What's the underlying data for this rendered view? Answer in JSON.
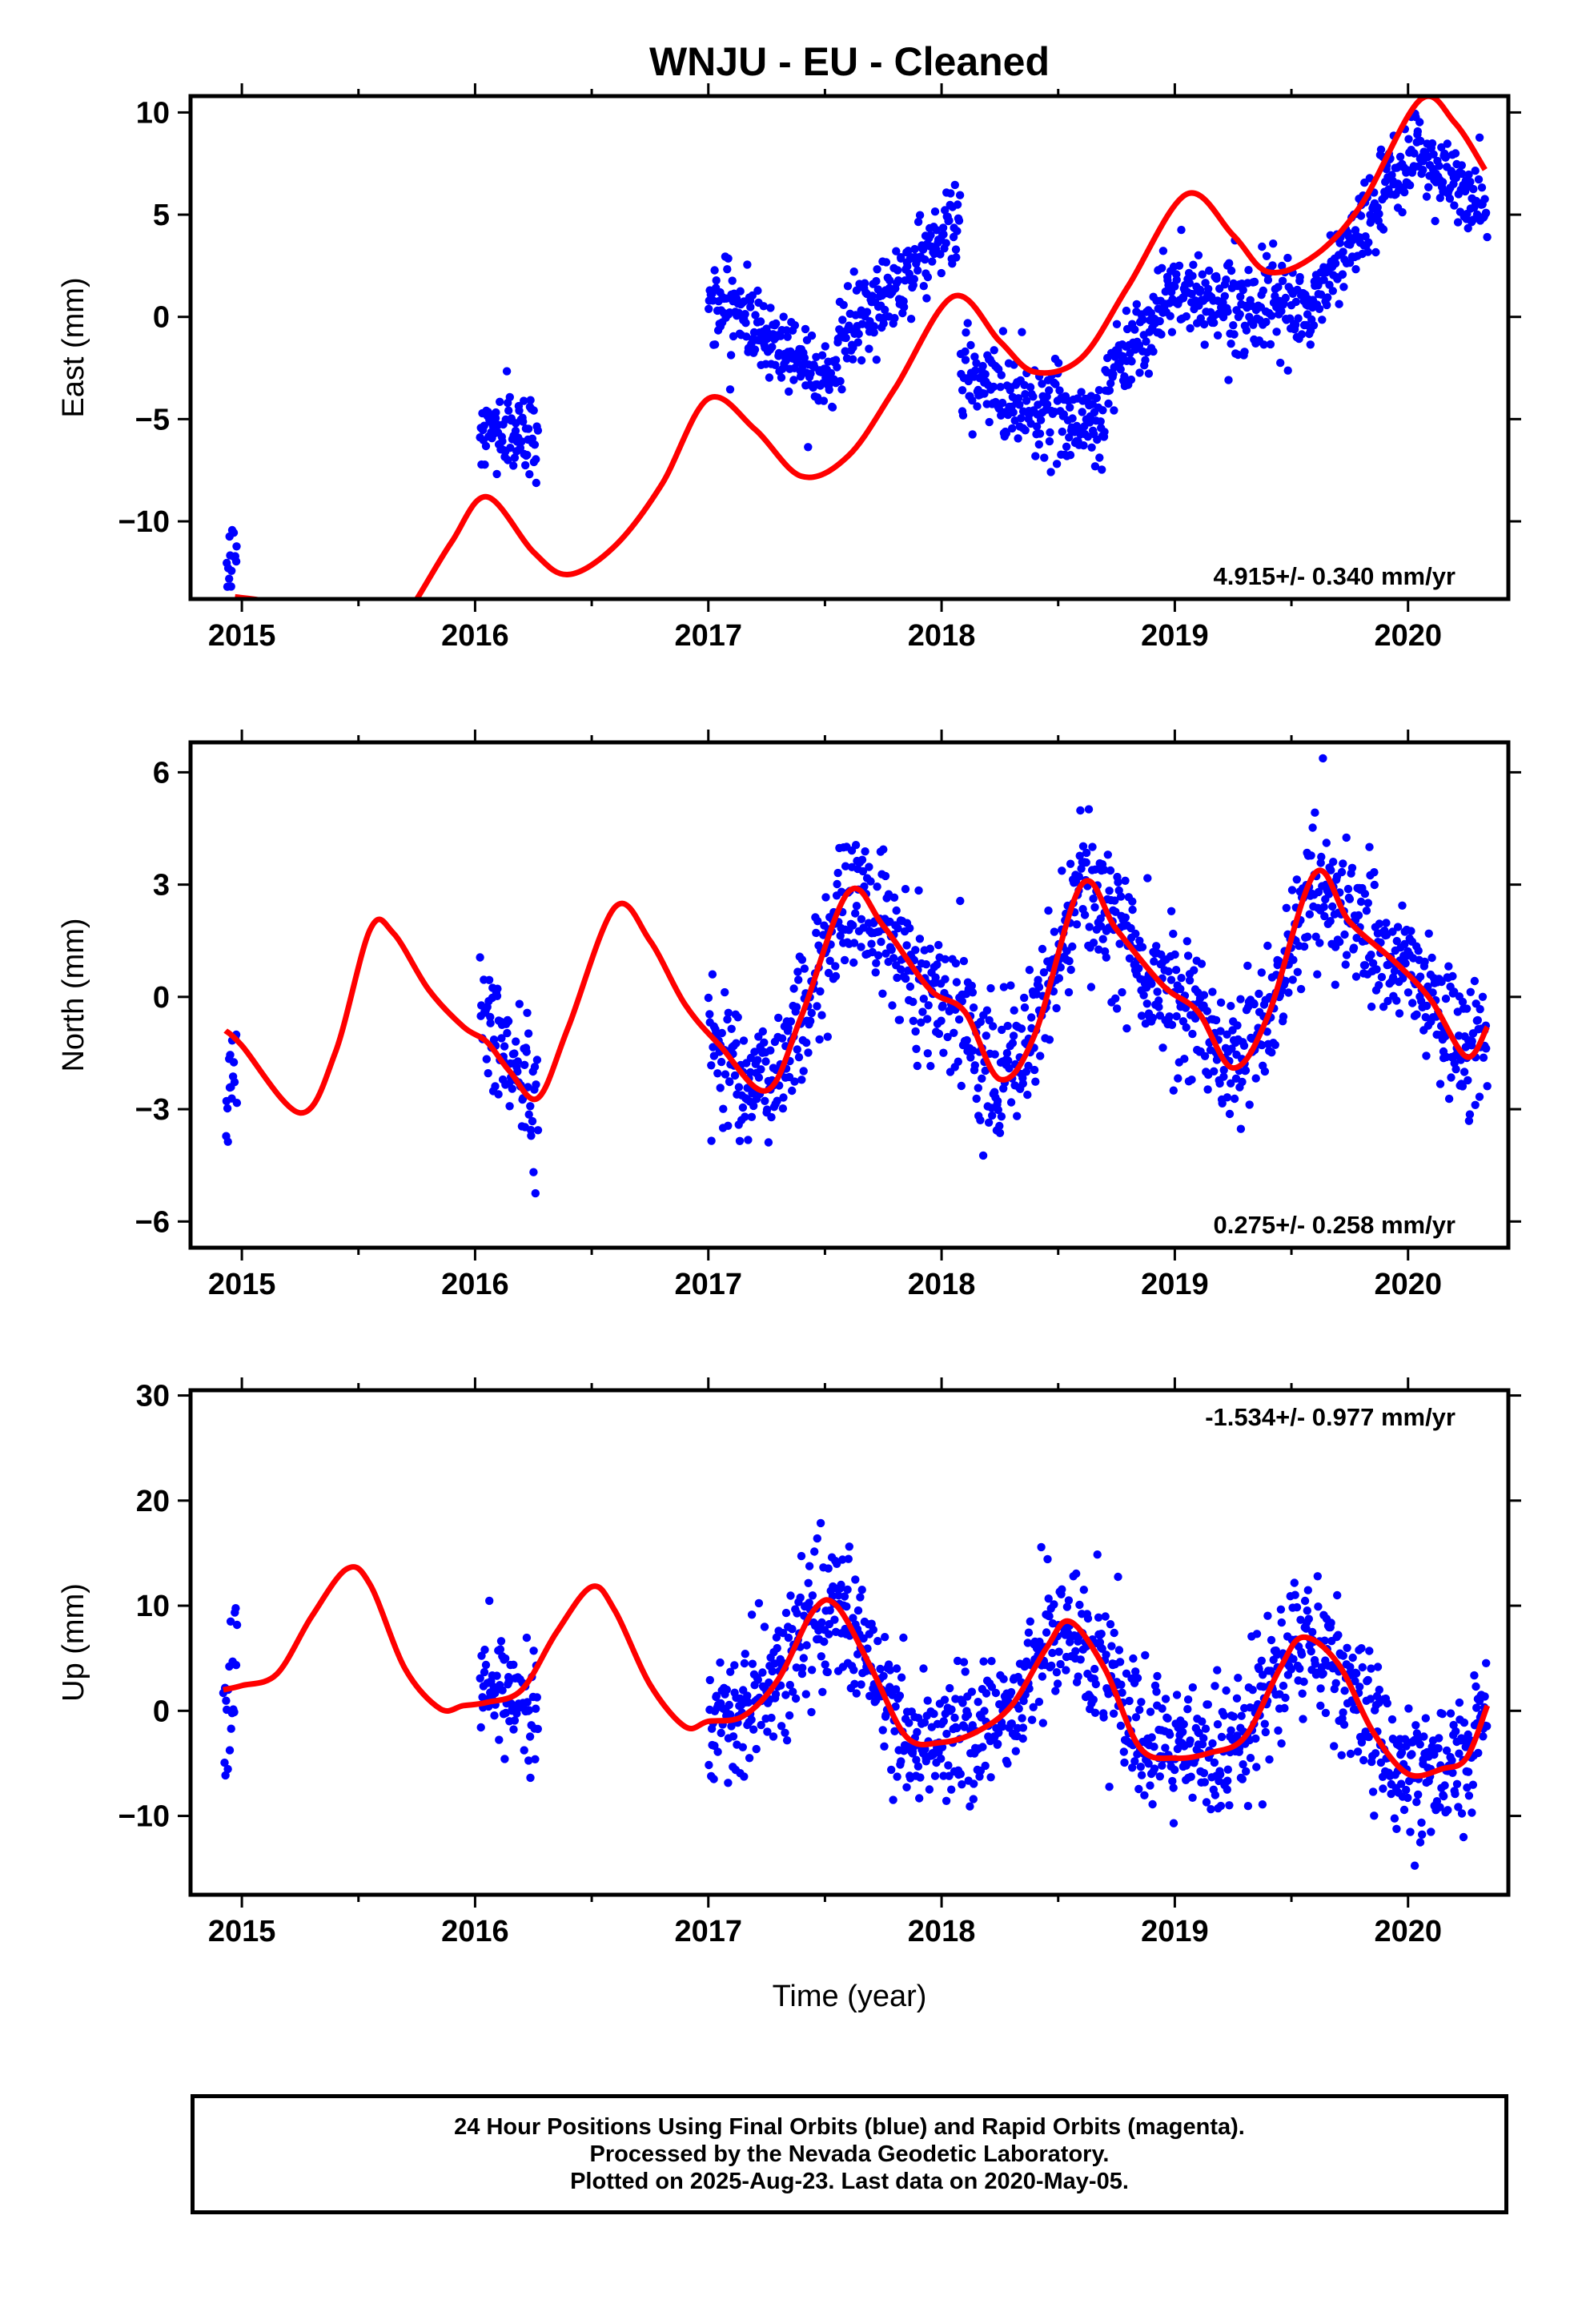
{
  "title": "WNJU  - EU - Cleaned",
  "xlabel": "Time (year)",
  "colors": {
    "final_orbits": "#0000ff",
    "model": "#ff0000",
    "frame": "#000000"
  },
  "caption": [
    "24 Hour Positions Using Final Orbits (blue) and Rapid Orbits (magenta).",
    "Processed by the Nevada Geodetic Laboratory.",
    "Plotted on 2025-Aug-23. Last data on 2020-May-05."
  ],
  "chart_data": [
    {
      "type": "scatter",
      "component": "east",
      "ylabel": "East (mm)",
      "rate_label": "4.915+/- 0.340 mm/yr",
      "xlim": [
        2014.78,
        2020.43
      ],
      "ylim": [
        -13.8,
        10.8
      ],
      "xticks": [
        2015,
        2016,
        2017,
        2018,
        2019,
        2020
      ],
      "yticks": [
        -10,
        -5,
        0,
        5,
        10
      ],
      "tick_labels_y": [
        "−10",
        "−5",
        "0",
        "5",
        "10"
      ],
      "grid": false,
      "data_segments": [
        {
          "x0": 2014.93,
          "x1": 2014.98,
          "trend": [
            -12.5,
            -11.2
          ],
          "noise": 1.0
        },
        {
          "x0": 2016.02,
          "x1": 2016.27,
          "trend": [
            -5.5,
            -5.8
          ],
          "noise": 1.0
        },
        {
          "x0": 2017.0,
          "x1": 2017.18,
          "trend": [
            0.8,
            0.2
          ],
          "noise": 1.0
        },
        {
          "x0": 2017.18,
          "x1": 2017.55,
          "trend": [
            -0.5,
            -3.0
          ],
          "noise": 1.0
        },
        {
          "x0": 2017.55,
          "x1": 2018.08,
          "trend": [
            -1.5,
            5.0
          ],
          "noise": 1.0
        },
        {
          "x0": 2018.08,
          "x1": 2018.7,
          "trend": [
            -3.0,
            -5.5
          ],
          "noise": 1.2
        },
        {
          "x0": 2018.7,
          "x1": 2018.95,
          "trend": [
            -3.0,
            0.5
          ],
          "noise": 1.0
        },
        {
          "x0": 2018.95,
          "x1": 2019.6,
          "trend": [
            1.2,
            0.2
          ],
          "noise": 1.0
        },
        {
          "x0": 2019.6,
          "x1": 2020.05,
          "trend": [
            1.0,
            8.5
          ],
          "noise": 1.0
        },
        {
          "x0": 2020.05,
          "x1": 2020.34,
          "trend": [
            8.0,
            5.0
          ],
          "noise": 1.0
        }
      ],
      "model": {
        "x": [
          2014.97,
          2015.1,
          2015.3,
          2015.5,
          2015.7,
          2015.75,
          2015.9,
          2016.05,
          2016.25,
          2016.4,
          2016.6,
          2016.8,
          2017.0,
          2017.2,
          2017.4,
          2017.6,
          2017.8,
          2018.05,
          2018.25,
          2018.4,
          2018.6,
          2018.8,
          2019.05,
          2019.25,
          2019.4,
          2019.6,
          2019.8,
          2020.05,
          2020.2,
          2020.33
        ],
        "y": [
          -13.7,
          -13.9,
          -14.5,
          -15.5,
          -14.5,
          -13.8,
          -11.0,
          -8.8,
          -11.5,
          -12.6,
          -11.2,
          -8.2,
          -4.0,
          -5.5,
          -7.8,
          -6.8,
          -3.5,
          1.0,
          -1.2,
          -2.7,
          -2.0,
          1.5,
          6.0,
          4.0,
          2.2,
          3.0,
          5.5,
          10.6,
          9.5,
          7.2
        ]
      }
    },
    {
      "type": "scatter",
      "component": "north",
      "ylabel": "North (mm)",
      "rate_label": "0.275+/- 0.258 mm/yr",
      "xlim": [
        2014.78,
        2020.43
      ],
      "ylim": [
        -6.7,
        6.8
      ],
      "xticks": [
        2015,
        2016,
        2017,
        2018,
        2019,
        2020
      ],
      "yticks": [
        -6,
        -3,
        0,
        3,
        6
      ],
      "tick_labels_y": [
        "−6",
        "−3",
        "0",
        "3",
        "6"
      ],
      "grid": false,
      "data_segments": [
        {
          "x0": 2014.93,
          "x1": 2014.98,
          "trend": [
            -2.8,
            -1.8
          ],
          "noise": 0.8
        },
        {
          "x0": 2016.02,
          "x1": 2016.27,
          "trend": [
            -0.3,
            -3.0
          ],
          "noise": 0.9
        },
        {
          "x0": 2017.0,
          "x1": 2020.34,
          "model_follow": true,
          "noise": 0.9
        }
      ],
      "model": {
        "x": [
          2014.93,
          2015.0,
          2015.25,
          2015.4,
          2015.55,
          2015.65,
          2015.8,
          2015.95,
          2016.05,
          2016.15,
          2016.27,
          2016.4,
          2016.6,
          2016.75,
          2016.9,
          2017.05,
          2017.25,
          2017.4,
          2017.6,
          2017.75,
          2017.95,
          2018.1,
          2018.25,
          2018.4,
          2018.6,
          2018.75,
          2018.95,
          2019.1,
          2019.25,
          2019.4,
          2019.6,
          2019.75,
          2019.95,
          2020.1,
          2020.25,
          2020.34
        ],
        "y": [
          -0.9,
          -1.3,
          -3.1,
          -1.5,
          1.8,
          1.7,
          0.2,
          -0.8,
          -1.2,
          -2.0,
          -2.7,
          -0.8,
          2.4,
          1.5,
          -0.2,
          -1.3,
          -2.5,
          -0.5,
          2.8,
          1.9,
          0.2,
          -0.4,
          -2.2,
          -1.0,
          3.0,
          1.8,
          0.3,
          -0.4,
          -1.9,
          -0.5,
          3.3,
          2.0,
          0.9,
          -0.1,
          -1.6,
          -0.8
        ]
      }
    },
    {
      "type": "scatter",
      "component": "up",
      "ylabel": "Up (mm)",
      "rate_label": "-1.534+/- 0.977 mm/yr",
      "xlim": [
        2014.78,
        2020.43
      ],
      "ylim": [
        -17.5,
        30.5
      ],
      "xticks": [
        2015,
        2016,
        2017,
        2018,
        2019,
        2020
      ],
      "yticks": [
        -10,
        0,
        10,
        20,
        30
      ],
      "tick_labels_y": [
        "−10",
        "0",
        "10",
        "20",
        "30"
      ],
      "grid": false,
      "data_segments": [
        {
          "x0": 2014.92,
          "x1": 2014.98,
          "trend": [
            -4.0,
            5.0
          ],
          "noise": 3.5
        },
        {
          "x0": 2016.02,
          "x1": 2016.27,
          "trend": [
            2.0,
            1.5
          ],
          "noise": 3.0
        },
        {
          "x0": 2017.0,
          "x1": 2020.34,
          "model_follow": true,
          "noise": 3.2
        }
      ],
      "model": {
        "x": [
          2014.92,
          2015.0,
          2015.15,
          2015.3,
          2015.45,
          2015.55,
          2015.7,
          2015.85,
          2015.95,
          2016.05,
          2016.2,
          2016.35,
          2016.5,
          2016.6,
          2016.75,
          2016.9,
          2017.0,
          2017.15,
          2017.3,
          2017.45,
          2017.55,
          2017.7,
          2017.85,
          2018.0,
          2018.15,
          2018.3,
          2018.45,
          2018.55,
          2018.7,
          2018.85,
          2019.0,
          2019.15,
          2019.3,
          2019.45,
          2019.55,
          2019.7,
          2019.85,
          2020.0,
          2020.15,
          2020.25,
          2020.34
        ],
        "y": [
          2.0,
          2.4,
          3.5,
          9.0,
          13.5,
          12.0,
          4.0,
          0.2,
          0.5,
          0.8,
          2.0,
          7.5,
          11.8,
          9.5,
          2.5,
          -1.5,
          -1.0,
          -0.5,
          3.0,
          9.5,
          10.0,
          4.0,
          -2.5,
          -3.0,
          -2.0,
          0.5,
          6.0,
          8.5,
          4.0,
          -3.5,
          -4.5,
          -4.0,
          -2.5,
          4.0,
          7.0,
          4.5,
          -2.0,
          -6.0,
          -5.5,
          -4.5,
          0.5
        ]
      }
    }
  ]
}
